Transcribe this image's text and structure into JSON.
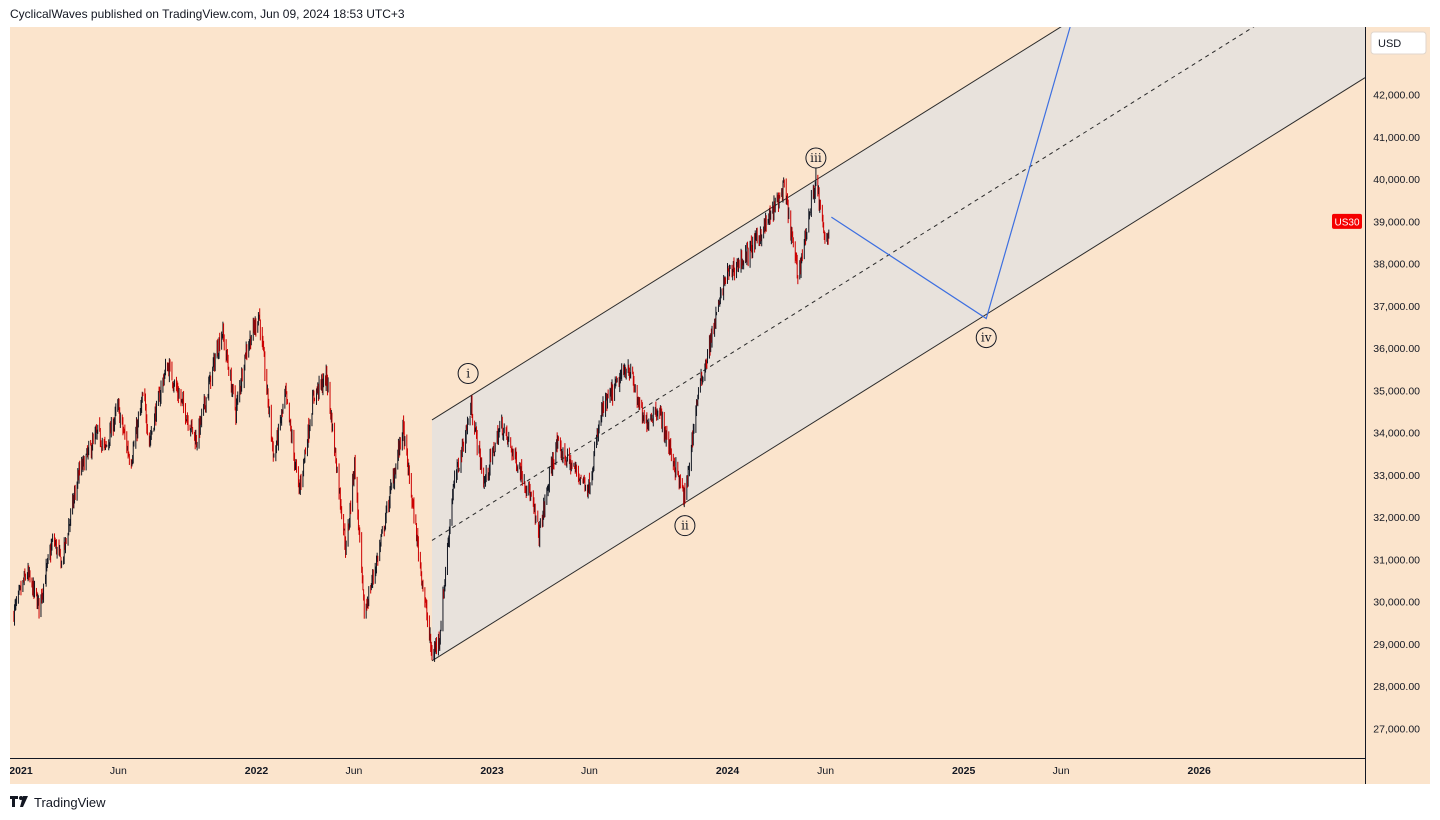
{
  "header": {
    "text": "CyclicalWaves published on TradingView.com, Jun 09, 2024 18:53 UTC+3"
  },
  "footer": {
    "brand": "TradingView"
  },
  "colors": {
    "background": "#fbe4cc",
    "channel_fill": "#e8e2dc",
    "up_candle": "#131722",
    "down_candle": "#cc0000",
    "projection": "#3d6fe0",
    "badge": "#f50000"
  },
  "chart_data": {
    "type": "candlestick",
    "symbol": "US30",
    "currency": "USD",
    "x_tick_labels": [
      "2021",
      "Jun",
      "2022",
      "Jun",
      "2023",
      "Jun",
      "2024",
      "Jun",
      "2025",
      "Jun",
      "2026"
    ],
    "y_ticks": [
      27000,
      28000,
      29000,
      30000,
      31000,
      32000,
      33000,
      34000,
      35000,
      36000,
      37000,
      38000,
      39000,
      40000,
      41000,
      42000
    ],
    "y_tick_labels": [
      "27,000.00",
      "28,000.00",
      "29,000.00",
      "30,000.00",
      "31,000.00",
      "32,000.00",
      "33,000.00",
      "34,000.00",
      "35,000.00",
      "36,000.00",
      "37,000.00",
      "38,000.00",
      "39,000.00",
      "40,000.00",
      "41,000.00",
      "42,000.00"
    ],
    "ylim": [
      26300,
      43600
    ],
    "xlim": [
      "2020-12-15",
      "2026-09-15"
    ],
    "price_path": [
      [
        "2020-12-20",
        29700
      ],
      [
        "2021-01-10",
        30700
      ],
      [
        "2021-01-29",
        29900
      ],
      [
        "2021-02-20",
        31500
      ],
      [
        "2021-03-05",
        30900
      ],
      [
        "2021-03-31",
        33000
      ],
      [
        "2021-04-30",
        34000
      ],
      [
        "2021-05-12",
        33600
      ],
      [
        "2021-05-31",
        34600
      ],
      [
        "2021-06-20",
        33300
      ],
      [
        "2021-07-10",
        34900
      ],
      [
        "2021-07-19",
        33800
      ],
      [
        "2021-08-10",
        35300
      ],
      [
        "2021-08-16",
        35600
      ],
      [
        "2021-09-30",
        33800
      ],
      [
        "2021-10-31",
        35900
      ],
      [
        "2021-11-09",
        36400
      ],
      [
        "2021-11-30",
        34500
      ],
      [
        "2021-12-15",
        35900
      ],
      [
        "2022-01-05",
        36800
      ],
      [
        "2022-01-28",
        33400
      ],
      [
        "2022-02-15",
        34900
      ],
      [
        "2022-03-08",
        32600
      ],
      [
        "2022-03-31",
        34900
      ],
      [
        "2022-04-20",
        35300
      ],
      [
        "2022-05-20",
        31200
      ],
      [
        "2022-06-02",
        33300
      ],
      [
        "2022-06-17",
        29700
      ],
      [
        "2022-07-10",
        31200
      ],
      [
        "2022-08-16",
        34100
      ],
      [
        "2022-09-30",
        28700
      ],
      [
        "2022-10-12",
        29200
      ],
      [
        "2022-11-01",
        32600
      ],
      [
        "2022-11-30",
        34600
      ],
      [
        "2022-12-20",
        32800
      ],
      [
        "2023-01-15",
        34200
      ],
      [
        "2023-02-28",
        32600
      ],
      [
        "2023-03-15",
        31600
      ],
      [
        "2023-04-10",
        33700
      ],
      [
        "2023-05-31",
        32700
      ],
      [
        "2023-06-20",
        34500
      ],
      [
        "2023-07-31",
        35600
      ],
      [
        "2023-08-25",
        34200
      ],
      [
        "2023-09-15",
        34600
      ],
      [
        "2023-10-27",
        32400
      ],
      [
        "2023-11-15",
        34800
      ],
      [
        "2023-12-29",
        37700
      ],
      [
        "2024-01-31",
        38200
      ],
      [
        "2024-02-29",
        38900
      ],
      [
        "2024-03-29",
        39800
      ],
      [
        "2024-04-19",
        37700
      ],
      [
        "2024-05-17",
        40000
      ],
      [
        "2024-05-31",
        38500
      ],
      [
        "2024-06-07",
        38800
      ]
    ],
    "channel": {
      "lower": [
        [
          "2022-09-30",
          28600
        ],
        [
          "2026-09-15",
          42400
        ]
      ],
      "upper": [
        [
          "2022-09-30",
          34300
        ],
        [
          "2026-09-15",
          48100
        ]
      ],
      "median": [
        [
          "2022-09-30",
          31450
        ],
        [
          "2026-09-15",
          45250
        ]
      ]
    },
    "projection_path": [
      [
        "2024-06-10",
        39100
      ],
      [
        "2025-02-05",
        36700
      ],
      [
        "2025-06-15",
        43600
      ]
    ],
    "wave_labels": [
      {
        "label": "i",
        "date": "2022-11-25",
        "value": 35400
      },
      {
        "label": "ii",
        "date": "2023-10-27",
        "value": 31800
      },
      {
        "label": "iii",
        "date": "2024-05-17",
        "value": 40500
      },
      {
        "label": "iv",
        "date": "2025-02-05",
        "value": 36250
      }
    ],
    "last_price_label": "US30",
    "last_price": 39000
  }
}
